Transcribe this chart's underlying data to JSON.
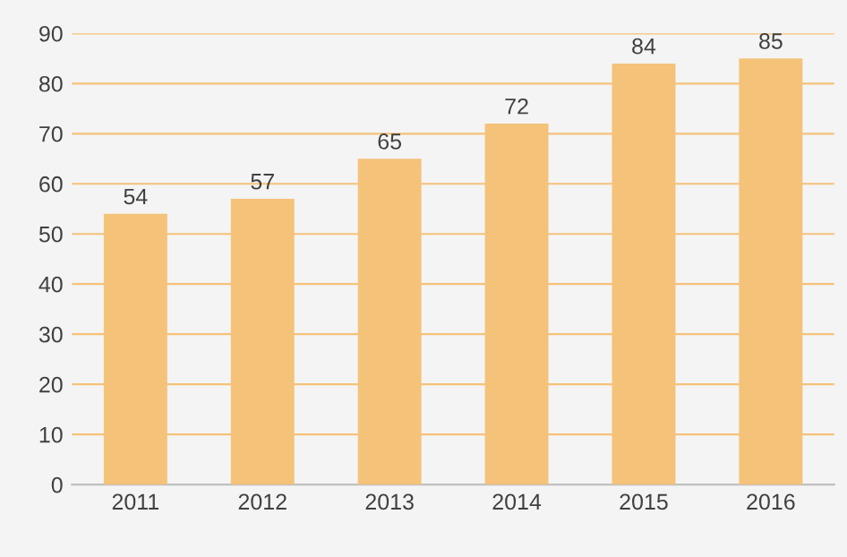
{
  "chart_data": {
    "type": "bar",
    "categories": [
      "2011",
      "2012",
      "2013",
      "2014",
      "2015",
      "2016"
    ],
    "values": [
      54,
      57,
      65,
      72,
      84,
      85
    ],
    "color": "#f5c27a",
    "ylim": [
      0,
      90
    ],
    "yticks": [
      0,
      10,
      20,
      30,
      40,
      50,
      60,
      70,
      80,
      90
    ],
    "grid": "y",
    "data_labels": true,
    "legend": false
  }
}
